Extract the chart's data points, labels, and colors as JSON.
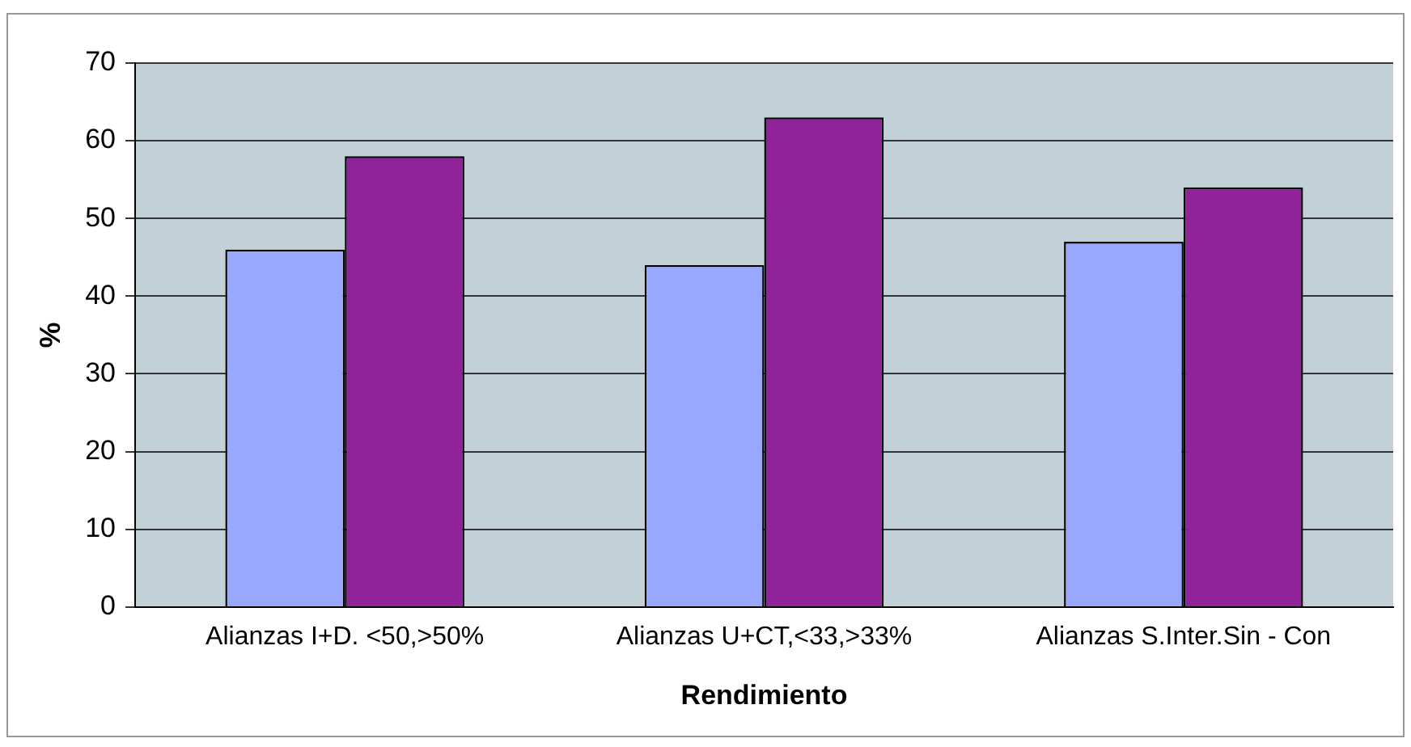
{
  "chart_data": {
    "type": "bar",
    "xlabel": "Rendimiento",
    "ylabel": "%",
    "categories": [
      "Alianzas I+D. <50,>50%",
      "Alianzas U+CT,<33,>33%",
      "Alianzas S.Inter.Sin - Con"
    ],
    "series": [
      {
        "color": "#99a8ff",
        "values": [
          46,
          44,
          47
        ]
      },
      {
        "color": "#90229a",
        "values": [
          58,
          63,
          54
        ]
      }
    ],
    "ylim": [
      0,
      70
    ],
    "yticks": [
      0,
      10,
      20,
      30,
      40,
      50,
      60,
      70
    ],
    "grid": "y",
    "legend": false
  }
}
